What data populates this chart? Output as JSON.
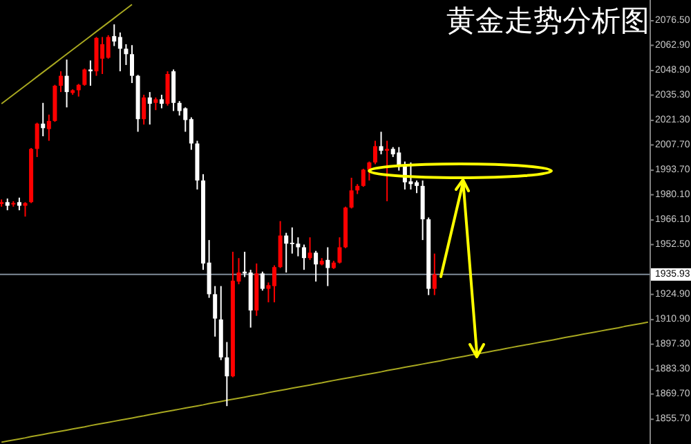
{
  "chart_data": {
    "type": "candlestick",
    "title": "黄金走势分析图",
    "tick_labels": "y",
    "categories": [
      null,
      null,
      null,
      null,
      null,
      null,
      null,
      null,
      null,
      null,
      null,
      null,
      null,
      null,
      null,
      null,
      null,
      null,
      null,
      null,
      null,
      null,
      null,
      null,
      null,
      null,
      null,
      null,
      null,
      null,
      null,
      null,
      null,
      null,
      null,
      null,
      null,
      null,
      null,
      null,
      null,
      null,
      null,
      null,
      null,
      null,
      null,
      null,
      null,
      null,
      null,
      null,
      null,
      null,
      null,
      null,
      null,
      null,
      null,
      null,
      null,
      null,
      null,
      null,
      null,
      null,
      null,
      null,
      null,
      null,
      null,
      null,
      null,
      null,
      null,
      null,
      null,
      null,
      null,
      null,
      null,
      null,
      null,
      null,
      null,
      null,
      null,
      null,
      null,
      null,
      null,
      null,
      null,
      null,
      null,
      null,
      null,
      null,
      null,
      null,
      null,
      null,
      null,
      null,
      null,
      null,
      null,
      null,
      null,
      null
    ],
    "ohlc": [
      [
        1975,
        1977.5,
        1973.5,
        1976
      ],
      [
        1976,
        1978,
        1971.5,
        1974
      ],
      [
        1975,
        1976.5,
        1973.5,
        1975.5
      ],
      [
        1976,
        1978.5,
        1971.5,
        1974
      ],
      [
        1974,
        1976,
        1968,
        1975.5
      ],
      [
        1976,
        2006,
        1975.5,
        2005.5
      ],
      [
        2005.5,
        2020,
        2001,
        2019.5
      ],
      [
        2019.5,
        2031,
        2012.5,
        2017
      ],
      [
        2016.5,
        2024.5,
        2010,
        2021
      ],
      [
        2021,
        2041,
        2020.5,
        2040.5
      ],
      [
        2040.5,
        2048.5,
        2037,
        2046
      ],
      [
        2046,
        2055,
        2028.5,
        2037
      ],
      [
        2036.5,
        2038.5,
        2035.5,
        2038
      ],
      [
        2038,
        2041.5,
        2034.5,
        2041
      ],
      [
        2041,
        2050,
        2040.5,
        2049.5
      ],
      [
        2049.5,
        2054.5,
        2040.5,
        2048.5
      ],
      [
        2048.5,
        2067.5,
        2046,
        2067
      ],
      [
        2055.5,
        2067.5,
        2047,
        2063.5
      ],
      [
        2056,
        2068.5,
        2055.5,
        2067.5
      ],
      [
        2068,
        2074.5,
        2062.5,
        2065
      ],
      [
        2067.5,
        2070,
        2048.5,
        2061
      ],
      [
        2061,
        2063.5,
        2052,
        2058
      ],
      [
        2058,
        2063,
        2042,
        2046
      ],
      [
        2046,
        2046.5,
        2015,
        2022
      ],
      [
        2022,
        2035.5,
        2019,
        2034
      ],
      [
        2034,
        2037,
        2019,
        2030.5
      ],
      [
        2031,
        2034,
        2027,
        2033
      ],
      [
        2033,
        2035.5,
        2028,
        2030.5
      ],
      [
        2030.5,
        2048.5,
        2029.5,
        2047
      ],
      [
        2048.5,
        2049.5,
        2026.5,
        2031
      ],
      [
        2031,
        2032,
        2024,
        2026.5
      ],
      [
        2028,
        2028.5,
        2015,
        2021.5
      ],
      [
        2022,
        2023,
        2005,
        2008.5
      ],
      [
        2008.5,
        2010,
        1983,
        1988
      ],
      [
        1988,
        1991.5,
        1938.5,
        1942
      ],
      [
        1942.5,
        1955,
        1923,
        1925
      ],
      [
        1925,
        1929.5,
        1901.5,
        1911.5
      ],
      [
        1911,
        1929.5,
        1888.5,
        1890
      ],
      [
        1890,
        1898.5,
        1863,
        1879.5
      ],
      [
        1879.5,
        1948.5,
        1879,
        1932.5
      ],
      [
        1932,
        1945,
        1930.5,
        1937
      ],
      [
        1937.5,
        1948.5,
        1934.5,
        1936.5
      ],
      [
        1937,
        1938.5,
        1906.5,
        1916
      ],
      [
        1916,
        1942,
        1913,
        1936.5
      ],
      [
        1936.5,
        1937.5,
        1927,
        1928
      ],
      [
        1928,
        1931.5,
        1920.5,
        1930
      ],
      [
        1929.5,
        1941,
        1920.5,
        1940
      ],
      [
        1940,
        1965.5,
        1939.5,
        1957.5
      ],
      [
        1957.5,
        1959,
        1937,
        1953
      ],
      [
        1953.5,
        1962,
        1947.5,
        1953
      ],
      [
        1953,
        1956.5,
        1946,
        1951
      ],
      [
        1951,
        1952.5,
        1938.5,
        1945
      ],
      [
        1945,
        1956.5,
        1944,
        1948
      ],
      [
        1948,
        1949,
        1932,
        1941.5
      ],
      [
        1941.5,
        1945,
        1941,
        1943.5
      ],
      [
        1944,
        1951,
        1929.5,
        1939.5
      ],
      [
        1939.5,
        1943.5,
        1939,
        1942.5
      ],
      [
        1942.5,
        1956.5,
        1942,
        1951
      ],
      [
        1951,
        1973.5,
        1950.5,
        1973
      ],
      [
        1973,
        1989.5,
        1972.5,
        1982.5
      ],
      [
        1982.5,
        1986,
        1980.5,
        1985
      ],
      [
        1985,
        1994.5,
        1984.5,
        1994
      ],
      [
        1994,
        1998.5,
        1988,
        1998
      ],
      [
        1998,
        2010,
        1997,
        2007
      ],
      [
        2007,
        2015,
        2002.5,
        2004.5
      ],
      [
        2004.5,
        2010,
        1976.5,
        2005.5
      ],
      [
        2005.5,
        2006.5,
        2001,
        2002.5
      ],
      [
        2003.5,
        2006.5,
        1993.5,
        1996
      ],
      [
        1996,
        1998.5,
        1983,
        1987
      ],
      [
        1987.5,
        1998,
        1983,
        1986
      ],
      [
        1987,
        1988,
        1981,
        1985
      ],
      [
        1985,
        1988,
        1955,
        1966.5
      ],
      [
        1966.5,
        1967.5,
        1924.5,
        1928
      ],
      [
        1928,
        1947.5,
        1924.5,
        1936
      ],
      null,
      null,
      null,
      null,
      null,
      null,
      null,
      null,
      null,
      null,
      null,
      null,
      null,
      null,
      null,
      null,
      null,
      null,
      null,
      null,
      null,
      null,
      null,
      null,
      null,
      null,
      null,
      null,
      null,
      null,
      null,
      null,
      null,
      null,
      null,
      null
    ],
    "colors": [
      "#ff0000",
      "#ffffff",
      "#ff0000",
      "#ffffff",
      "#ff0000",
      "#ff0000",
      "#ff0000",
      "#ffffff",
      "#ff0000",
      "#ff0000",
      "#ff0000",
      "#ffffff",
      "#ff0000",
      "#ff0000",
      "#ff0000",
      "#ffffff",
      "#ff0000",
      "#ff0000",
      "#ff0000",
      "#ffffff",
      "#ffffff",
      "#ffffff",
      "#ffffff",
      "#ffffff",
      "#ff0000",
      "#ffffff",
      "#ff0000",
      "#ffffff",
      "#ff0000",
      "#ffffff",
      "#ffffff",
      "#ffffff",
      "#ffffff",
      "#ffffff",
      "#ffffff",
      "#ffffff",
      "#ffffff",
      "#ffffff",
      "#ffffff",
      "#ff0000",
      "#ff0000",
      "#ffffff",
      "#ffffff",
      "#ff0000",
      "#ffffff",
      "#ff0000",
      "#ff0000",
      "#ff0000",
      "#ffffff",
      "#ffffff",
      "#ffffff",
      "#ffffff",
      "#ff0000",
      "#ffffff",
      "#ff0000",
      "#ffffff",
      "#ff0000",
      "#ff0000",
      "#ff0000",
      "#ff0000",
      "#ff0000",
      "#ff0000",
      "#ff0000",
      "#ff0000",
      "#ffffff",
      "#ff0000",
      "#ffffff",
      "#ffffff",
      "#ffffff",
      "#ffffff",
      "#ffffff",
      "#ffffff",
      "#ffffff",
      "#ff0000",
      null,
      null,
      null,
      null,
      null,
      null,
      null,
      null,
      null,
      null,
      null,
      null,
      null,
      null,
      null,
      null,
      null,
      null,
      null,
      null,
      null,
      null,
      null,
      null,
      null,
      null,
      null,
      null,
      null,
      null,
      null,
      null,
      null,
      null,
      null,
      null
    ],
    "series": [
      {
        "type": "line",
        "color": "#a8a820",
        "values": [
          2030.5,
          2033,
          2035.5,
          2038,
          2040.5,
          2043,
          2045.5,
          2048,
          2050.5,
          2053,
          2055.5,
          2058,
          2060.5,
          2063,
          2065.5,
          2068,
          2070.5,
          2073,
          2075.5,
          2078,
          2080.5,
          2083,
          2085.5,
          null,
          null,
          null,
          null,
          null,
          null,
          null,
          null,
          null,
          null,
          null,
          null,
          null,
          null,
          null,
          null,
          null,
          null,
          null,
          null,
          null,
          null,
          null,
          null,
          null,
          null,
          null,
          null,
          null,
          null,
          null,
          null,
          null,
          null,
          null,
          null,
          null,
          null,
          null,
          null,
          null,
          null,
          null,
          null,
          null,
          null,
          null,
          null,
          null,
          null,
          null,
          null,
          null,
          null,
          null,
          null,
          null,
          null,
          null,
          null,
          null,
          null,
          null,
          null,
          null,
          null,
          null,
          null,
          null,
          null,
          null,
          null,
          null,
          null,
          null,
          null,
          null,
          null,
          null,
          null,
          null,
          null,
          null,
          null,
          null,
          null,
          null
        ]
      },
      {
        "type": "line",
        "color": "#a8a820",
        "values": [
          1843.0,
          1843.6,
          1844.2,
          1844.8,
          1845.4,
          1846.1,
          1846.7,
          1847.3,
          1847.9,
          1848.5,
          1849.1,
          1849.7,
          1850.3,
          1850.9,
          1851.5,
          1852.2,
          1852.8,
          1853.4,
          1854.0,
          1854.6,
          1855.2,
          1855.8,
          1856.4,
          1857.0,
          1857.6,
          1858.3,
          1858.9,
          1859.5,
          1860.1,
          1860.7,
          1861.3,
          1861.9,
          1862.5,
          1863.1,
          1863.7,
          1864.4,
          1865.0,
          1865.6,
          1866.2,
          1866.8,
          1867.4,
          1868.0,
          1868.6,
          1869.2,
          1869.8,
          1870.5,
          1871.1,
          1871.7,
          1872.3,
          1872.9,
          1873.5,
          1874.1,
          1874.7,
          1875.3,
          1875.9,
          1876.6,
          1877.2,
          1877.8,
          1878.4,
          1879.0,
          1879.6,
          1880.2,
          1880.8,
          1881.4,
          1882.0,
          1882.7,
          1883.3,
          1883.9,
          1884.5,
          1885.1,
          1885.7,
          1886.3,
          1886.9,
          1887.5,
          1888.1,
          1888.8,
          1889.4,
          1890.0,
          1890.6,
          1891.2,
          1891.8,
          1892.4,
          1893.0,
          1893.6,
          1894.2,
          1894.9,
          1895.5,
          1896.1,
          1896.7,
          1897.3,
          1897.9,
          1898.5,
          1899.1,
          1899.7,
          1900.3,
          1901.0,
          1901.6,
          1902.2,
          1902.8,
          1903.4,
          1904.0,
          1904.6,
          1905.2,
          1905.8,
          1906.4,
          1907.1,
          1907.7,
          1908.3,
          1908.9,
          1909.5
        ]
      }
    ],
    "ylim": [
      1842,
      2088
    ],
    "yticks": [
      {
        "value": 2076.5,
        "label": "2076.50"
      },
      {
        "value": 2062.9,
        "label": "2062.90"
      },
      {
        "value": 2048.9,
        "label": "2048.90"
      },
      {
        "value": 2035.3,
        "label": "2035.30"
      },
      {
        "value": 2021.3,
        "label": "2021.30"
      },
      {
        "value": 2007.7,
        "label": "2007.70"
      },
      {
        "value": 1993.7,
        "label": "1993.70"
      },
      {
        "value": 1980.1,
        "label": "1980.10"
      },
      {
        "value": 1966.1,
        "label": "1966.10"
      },
      {
        "value": 1952.5,
        "label": "1952.50"
      },
      {
        "value": 1924.9,
        "label": "1924.90"
      },
      {
        "value": 1910.9,
        "label": "1910.90"
      },
      {
        "value": 1897.3,
        "label": "1897.30"
      },
      {
        "value": 1883.3,
        "label": "1883.30"
      },
      {
        "value": 1869.7,
        "label": "1869.70"
      },
      {
        "value": 1855.7,
        "label": "1855.70"
      }
    ],
    "ref_lines": [
      {
        "axis": "y",
        "value": 1935.93,
        "label": "1935.93",
        "color": "#7f8c99"
      }
    ]
  }
}
